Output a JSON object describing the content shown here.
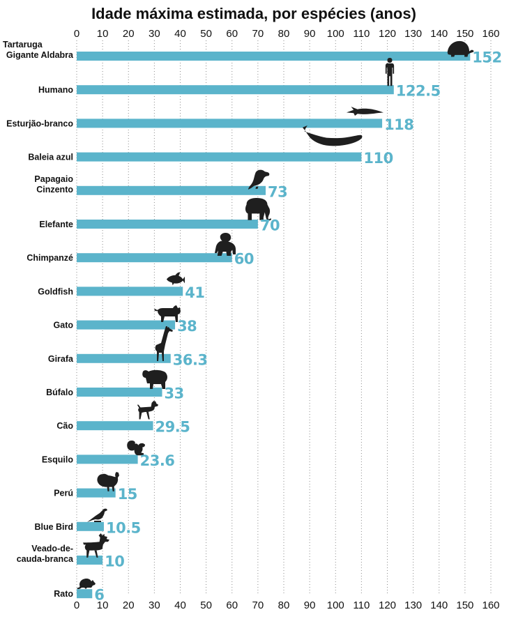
{
  "chart_data": {
    "type": "bar",
    "orientation": "horizontal",
    "title": "Idade máxima estimada, por espécies (anos)",
    "xlabel": "",
    "ylabel": "",
    "xlim": [
      0,
      160
    ],
    "ticks": [
      0,
      10,
      20,
      30,
      40,
      50,
      60,
      70,
      80,
      90,
      100,
      110,
      120,
      130,
      140,
      150,
      160
    ],
    "tick_positions": [
      "top",
      "bottom"
    ],
    "grid": "vertical-dotted",
    "categories": [
      [
        "Tartaruga",
        "Gigante Aldabra"
      ],
      [
        "Humano"
      ],
      [
        "Esturjão-branco"
      ],
      [
        "Baleia azul"
      ],
      [
        "Papagaio",
        "Cinzento"
      ],
      [
        "Elefante"
      ],
      [
        "Chimpanzé"
      ],
      [
        "Goldfish"
      ],
      [
        "Gato"
      ],
      [
        "Girafa"
      ],
      [
        "Búfalo"
      ],
      [
        "Cão"
      ],
      [
        "Esquilo"
      ],
      [
        "Perú"
      ],
      [
        "Blue Bird"
      ],
      [
        "Veado-de-",
        "cauda-branca"
      ],
      [
        "Rato"
      ]
    ],
    "values": [
      152,
      122.5,
      118,
      110,
      73,
      70,
      60,
      41,
      38,
      36.3,
      33,
      29.5,
      23.6,
      15,
      10.5,
      10,
      6
    ],
    "value_labels": [
      "152",
      "122.5",
      "118",
      "110",
      "73",
      "70",
      "60",
      "41",
      "38",
      "36.3",
      "33",
      "29.5",
      "23.6",
      "15",
      "10.5",
      "10",
      "6"
    ],
    "icons": [
      "tortoise-icon",
      "human-icon",
      "sturgeon-icon",
      "whale-icon",
      "parrot-icon",
      "elephant-icon",
      "chimpanzee-icon",
      "goldfish-icon",
      "cat-icon",
      "giraffe-icon",
      "buffalo-icon",
      "dog-icon",
      "squirrel-icon",
      "turkey-icon",
      "bluebird-icon",
      "deer-icon",
      "rat-icon"
    ],
    "colors": {
      "bar": "#5bb4cb",
      "label": "#5bb4cb",
      "text": "#111111",
      "grid": "#8a8a8a",
      "silhouette": "#1f1f1f"
    }
  }
}
